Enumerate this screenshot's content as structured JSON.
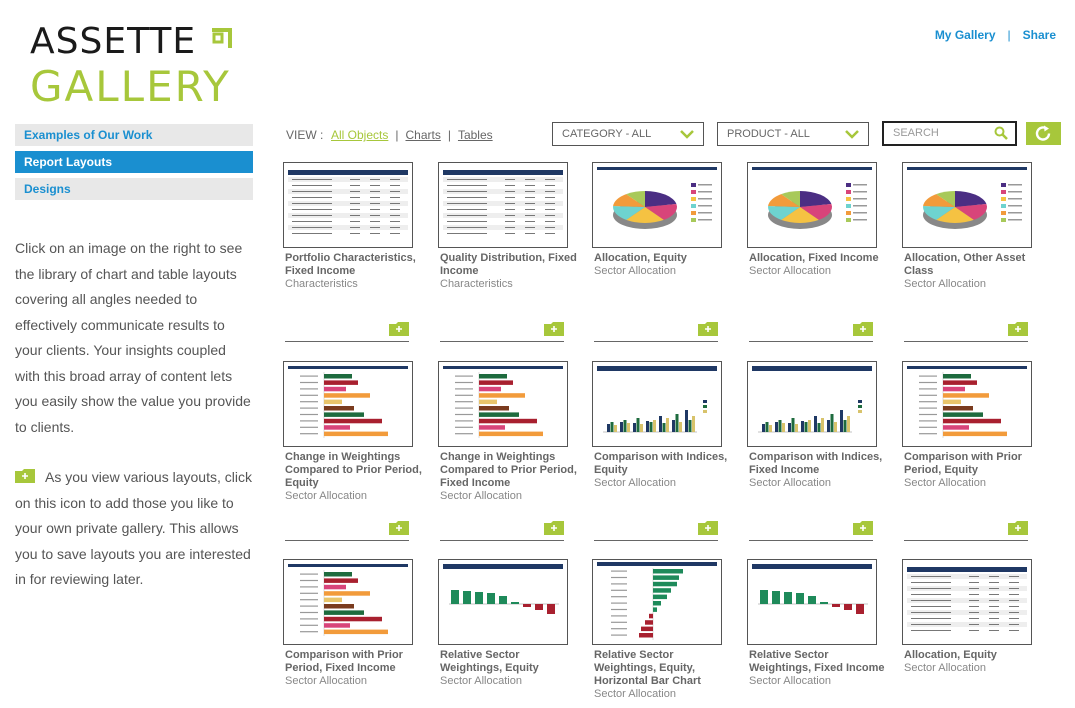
{
  "logo": {
    "line1": "ASSETTE",
    "line2": "GALLERY"
  },
  "top_links": {
    "my_gallery": "My Gallery",
    "separator": "|",
    "share": "Share"
  },
  "sidebar": {
    "items": [
      {
        "label": "Examples of Our Work",
        "active": false
      },
      {
        "label": "Report Layouts",
        "active": true
      },
      {
        "label": "Designs",
        "active": false
      }
    ],
    "intro_text": "Click on an image on the right to see the library of chart and table layouts covering all angles needed to effectively communicate results to your clients. Your insights coupled with this broad array of content lets you easily show the value you provide to clients.",
    "add_text": "As you view various layouts, click on this icon to add those you like to your own private gallery. This allows you to save layouts you are interested in for reviewing later."
  },
  "toolbar": {
    "view_label": "VIEW :",
    "view_options": [
      "All Objects",
      "Charts",
      "Tables"
    ],
    "view_separator": "|",
    "category_select": "CATEGORY - ALL",
    "product_select": "PRODUCT - ALL",
    "search_placeholder": "SEARCH"
  },
  "colors": {
    "accent_green": "#a7c73b",
    "link_blue": "#1a8fd0",
    "navy": "#1f3864"
  },
  "gallery": [
    {
      "title": "Portfolio Characteristics, Fixed Income",
      "category": "Characteristics",
      "thumb": "table"
    },
    {
      "title": "Quality Distribution, Fixed Income",
      "category": "Characteristics",
      "thumb": "table"
    },
    {
      "title": "Allocation, Equity",
      "category": "Sector Allocation",
      "thumb": "pie"
    },
    {
      "title": "Allocation, Fixed Income",
      "category": "Sector Allocation",
      "thumb": "pie"
    },
    {
      "title": "Allocation, Other Asset Class",
      "category": "Sector Allocation",
      "thumb": "pie"
    },
    {
      "title": "Change in Weightings Compared to Prior Period, Equity",
      "category": "Sector Allocation",
      "thumb": "hbar"
    },
    {
      "title": "Change in Weightings Compared to Prior Period, Fixed Income",
      "category": "Sector Allocation",
      "thumb": "hbar"
    },
    {
      "title": "Comparison with Indices, Equity",
      "category": "Sector Allocation",
      "thumb": "vbar"
    },
    {
      "title": "Comparison with Indices, Fixed Income",
      "category": "Sector Allocation",
      "thumb": "vbar"
    },
    {
      "title": "Comparison with Prior Period, Equity",
      "category": "Sector Allocation",
      "thumb": "hbar"
    },
    {
      "title": "Comparison with Prior Period, Fixed Income",
      "category": "Sector Allocation",
      "thumb": "hbar"
    },
    {
      "title": "Relative Sector Weightings, Equity",
      "category": "Sector Allocation",
      "thumb": "relbar"
    },
    {
      "title": "Relative Sector Weightings, Equity, Horizontal Bar Chart",
      "category": "Sector Allocation",
      "thumb": "relhbar"
    },
    {
      "title": "Relative Sector Weightings, Fixed Income",
      "category": "Sector Allocation",
      "thumb": "relbar"
    },
    {
      "title": "Allocation, Equity",
      "category": "Sector Allocation",
      "thumb": "table"
    }
  ]
}
